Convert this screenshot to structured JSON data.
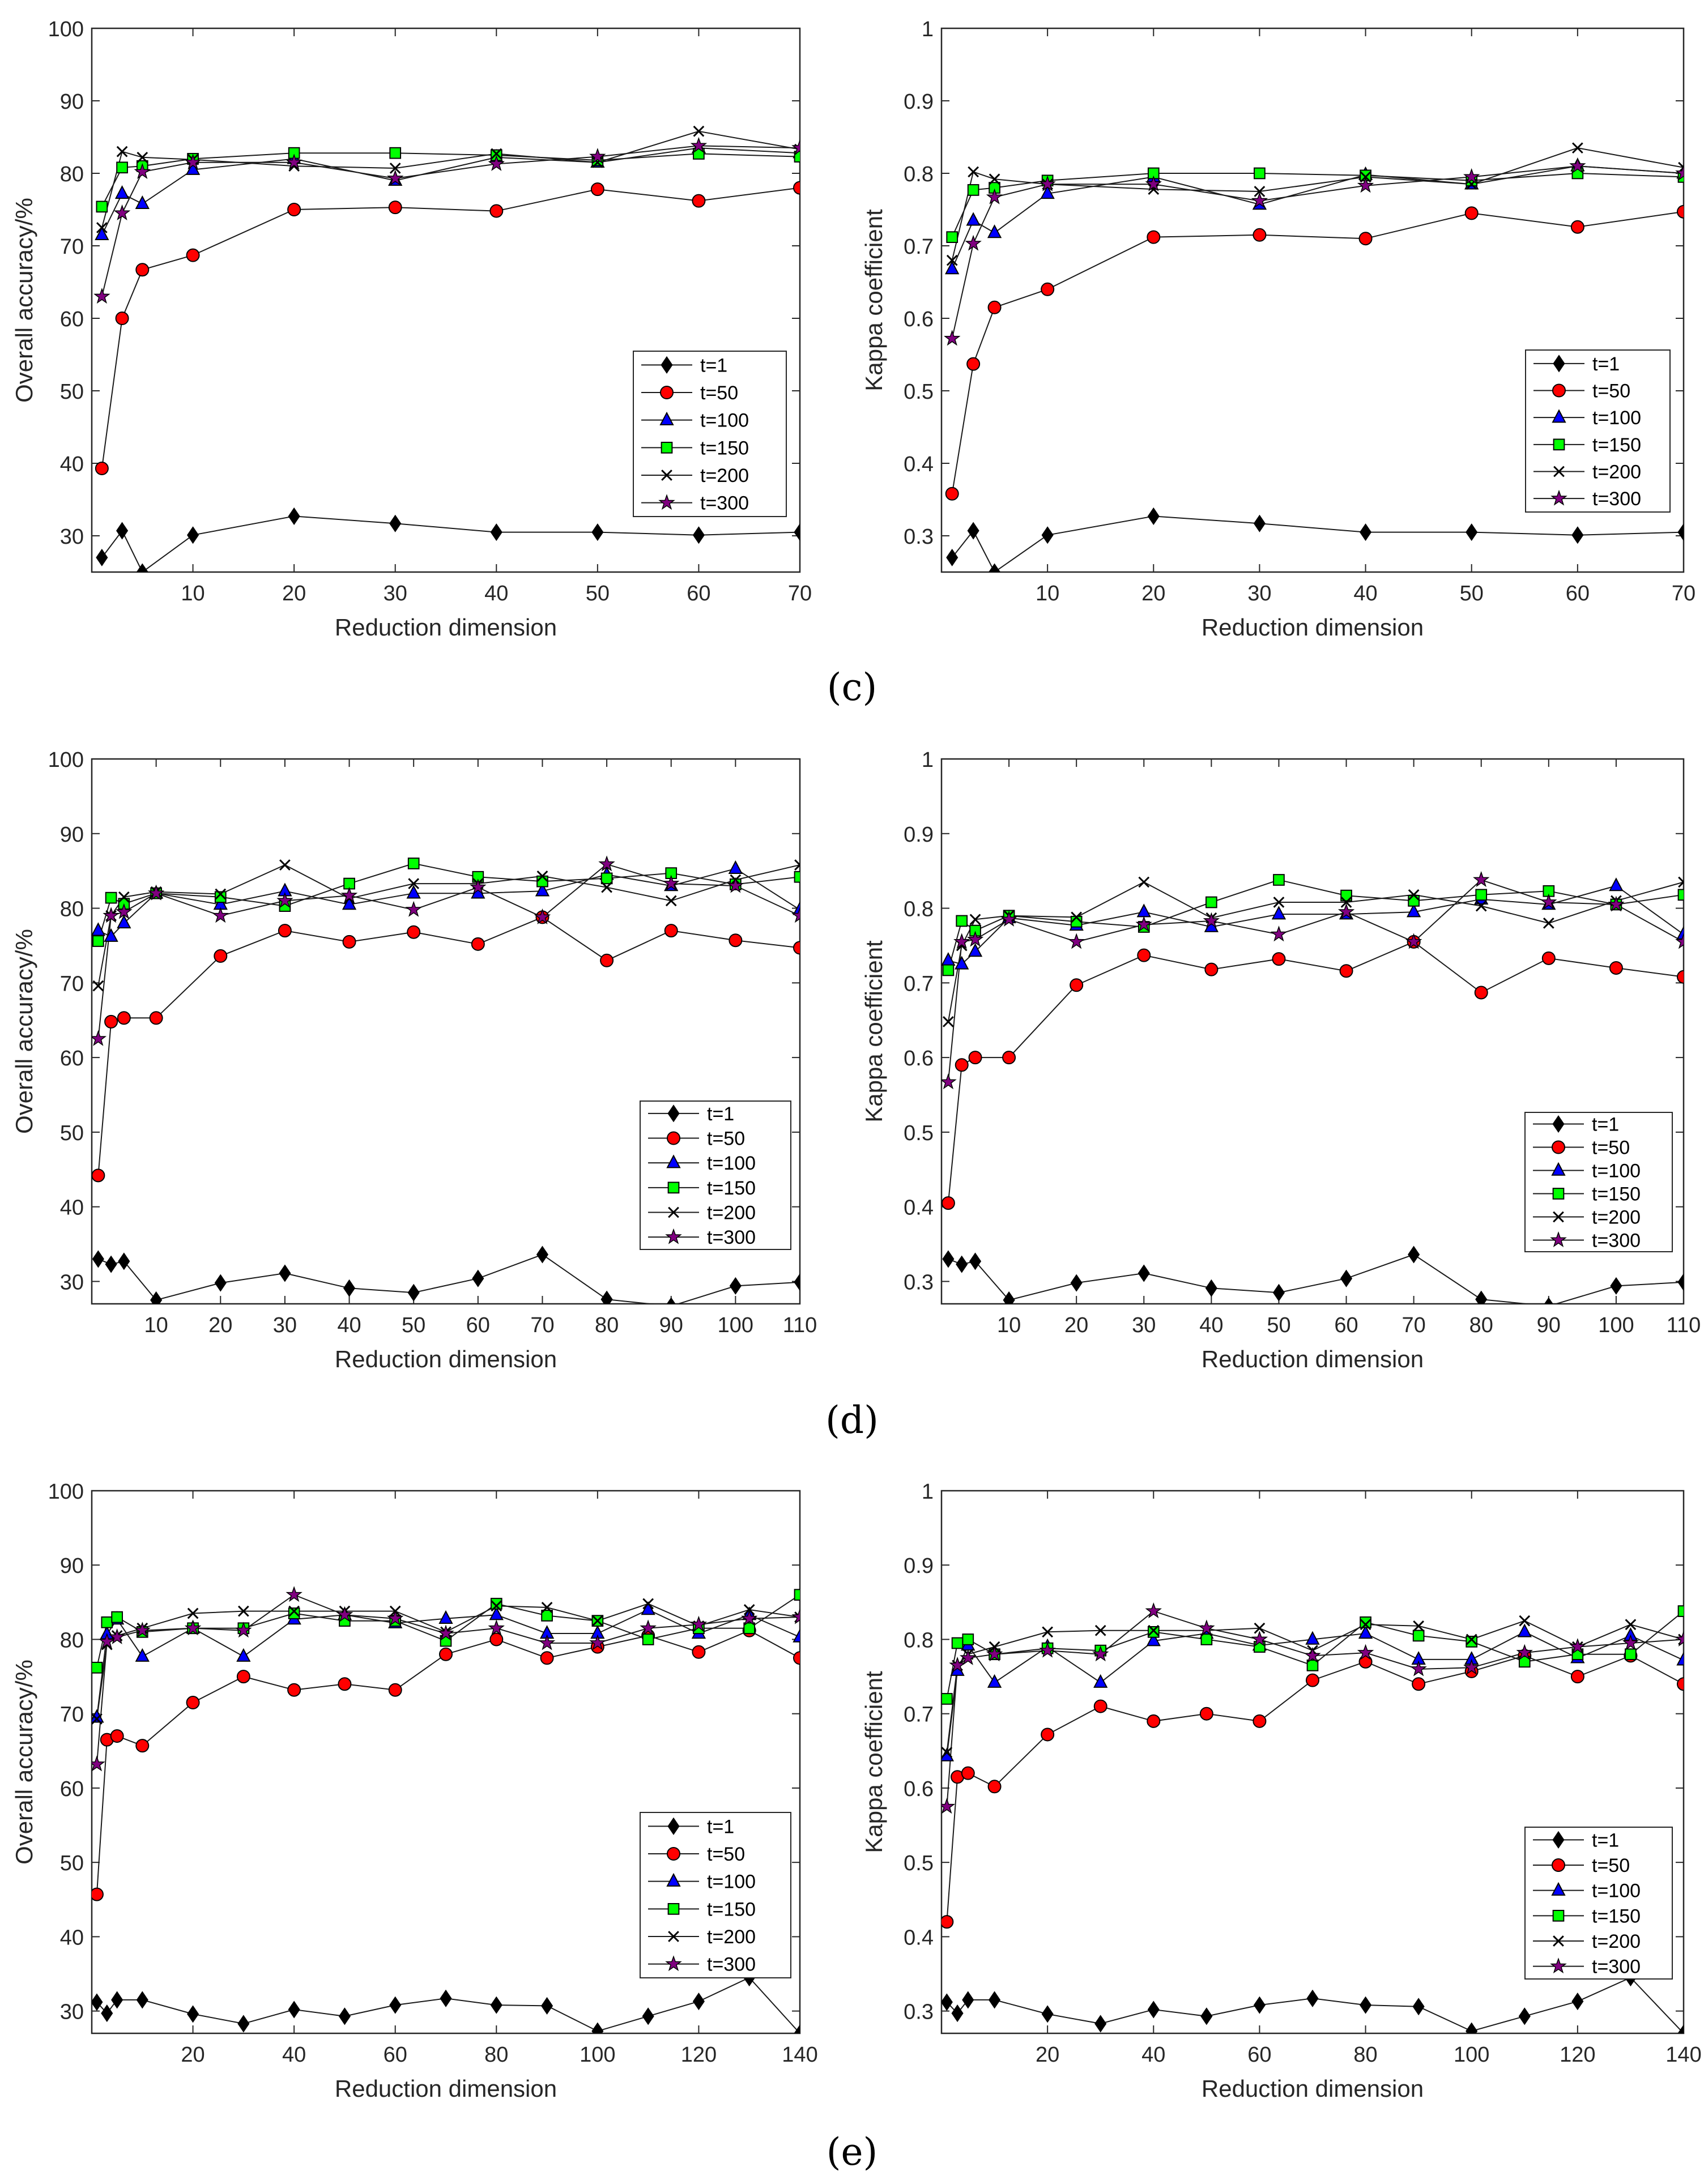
{
  "figure": {
    "panel_labels": [
      "(c)",
      "(d)",
      "(e)"
    ]
  },
  "series_styles": [
    {
      "name": "t=1",
      "marker": "diamond",
      "fill": "#000000",
      "line": "#000000"
    },
    {
      "name": "t=50",
      "marker": "circle",
      "fill": "#ff0000",
      "line": "#000000"
    },
    {
      "name": "t=100",
      "marker": "triangle",
      "fill": "#0000ff",
      "line": "#000000"
    },
    {
      "name": "t=150",
      "marker": "square",
      "fill": "#00ff00",
      "line": "#000000"
    },
    {
      "name": "t=200",
      "marker": "x",
      "fill": "#000000",
      "line": "#000000"
    },
    {
      "name": "t=300",
      "marker": "star",
      "fill": "#800080",
      "line": "#000000"
    }
  ],
  "chart_data": [
    {
      "panel": "(c)",
      "type": "line",
      "xlabel": "Reduction dimension",
      "ylabel": "Overall accuracy/%",
      "xlim": [
        0,
        70
      ],
      "ylim": [
        25,
        100
      ],
      "xticks": [
        10,
        20,
        30,
        40,
        50,
        60,
        70
      ],
      "yticks": [
        30,
        40,
        50,
        60,
        70,
        80,
        90,
        100
      ],
      "legend": "bottom-right",
      "x": [
        1,
        3,
        5,
        10,
        20,
        30,
        40,
        50,
        60,
        70
      ],
      "series": [
        {
          "name": "t=1",
          "values": [
            27,
            30.7,
            25,
            30.1,
            32.7,
            31.7,
            30.5,
            30.5,
            30.1,
            30.5
          ]
        },
        {
          "name": "t=50",
          "values": [
            39.3,
            60,
            66.7,
            68.7,
            75,
            75.3,
            74.8,
            77.8,
            76.2,
            78
          ]
        },
        {
          "name": "t=100",
          "values": [
            71.5,
            77.2,
            75.8,
            80.5,
            82,
            79,
            82.2,
            81.5,
            83.5,
            82.8
          ]
        },
        {
          "name": "t=150",
          "values": [
            75.4,
            80.8,
            81,
            82,
            82.8,
            82.8,
            82.5,
            81.8,
            82.7,
            82.3
          ]
        },
        {
          "name": "t=200",
          "values": [
            72.5,
            83,
            82.2,
            81.9,
            81,
            80.7,
            82.7,
            81.5,
            85.8,
            83.3
          ]
        },
        {
          "name": "t=300",
          "values": [
            63,
            74.5,
            80.2,
            81.5,
            81.5,
            79.3,
            81.3,
            82.3,
            83.8,
            83.5
          ]
        }
      ]
    },
    {
      "panel": "(c)",
      "type": "line",
      "xlabel": "Reduction dimension",
      "ylabel": "Kappa coefficient",
      "xlim": [
        0,
        70
      ],
      "ylim": [
        0.25,
        1
      ],
      "xticks": [
        10,
        20,
        30,
        40,
        50,
        60,
        70
      ],
      "yticks": [
        0.3,
        0.4,
        0.5,
        0.6,
        0.7,
        0.8,
        0.9,
        1
      ],
      "legend": "bottom-right",
      "x": [
        1,
        3,
        5,
        10,
        20,
        30,
        40,
        50,
        60,
        70
      ],
      "series": [
        {
          "name": "t=1",
          "values": [
            0.27,
            0.307,
            0.25,
            0.301,
            0.327,
            0.317,
            0.305,
            0.305,
            0.301,
            0.305
          ]
        },
        {
          "name": "t=50",
          "values": [
            0.358,
            0.537,
            0.615,
            0.64,
            0.712,
            0.715,
            0.71,
            0.745,
            0.726,
            0.747
          ]
        },
        {
          "name": "t=100",
          "values": [
            0.668,
            0.735,
            0.718,
            0.772,
            0.795,
            0.757,
            0.798,
            0.785,
            0.81,
            0.8
          ]
        },
        {
          "name": "t=150",
          "values": [
            0.712,
            0.777,
            0.78,
            0.79,
            0.8,
            0.8,
            0.797,
            0.79,
            0.8,
            0.795
          ]
        },
        {
          "name": "t=200",
          "values": [
            0.68,
            0.802,
            0.792,
            0.785,
            0.778,
            0.775,
            0.795,
            0.785,
            0.835,
            0.808
          ]
        },
        {
          "name": "t=300",
          "values": [
            0.572,
            0.703,
            0.767,
            0.785,
            0.785,
            0.762,
            0.783,
            0.795,
            0.81,
            0.8
          ]
        }
      ]
    },
    {
      "panel": "(d)",
      "type": "line",
      "xlabel": "Reduction dimension",
      "ylabel": "Overall accuracy/%",
      "xlim": [
        0,
        110
      ],
      "ylim": [
        27,
        100
      ],
      "xticks": [
        10,
        20,
        30,
        40,
        50,
        60,
        70,
        80,
        90,
        100,
        110
      ],
      "yticks": [
        30,
        40,
        50,
        60,
        70,
        80,
        90,
        100
      ],
      "legend": "bottom-right",
      "x": [
        1,
        3,
        5,
        10,
        20,
        30,
        40,
        50,
        60,
        70,
        80,
        90,
        100,
        110
      ],
      "series": [
        {
          "name": "t=1",
          "values": [
            33,
            32.3,
            32.7,
            27.5,
            29.8,
            31.1,
            29.1,
            28.5,
            30.4,
            33.6,
            27.6,
            26.7,
            29.4,
            29.9
          ]
        },
        {
          "name": "t=50",
          "values": [
            44.2,
            64.8,
            65.3,
            65.3,
            73.6,
            77,
            75.5,
            76.8,
            75.2,
            78.8,
            73,
            77,
            75.7,
            74.7
          ]
        },
        {
          "name": "t=100",
          "values": [
            77,
            76.2,
            78,
            82,
            80.5,
            82.3,
            80.5,
            82,
            82,
            82.3,
            84.5,
            83,
            85.3,
            79.8
          ]
        },
        {
          "name": "t=150",
          "values": [
            75.6,
            81.4,
            80.6,
            82,
            81.5,
            80.3,
            83.3,
            86,
            84.2,
            83.6,
            84,
            84.7,
            83.2,
            84.2
          ]
        },
        {
          "name": "t=200",
          "values": [
            69.6,
            79,
            81.5,
            82.2,
            81.9,
            85.8,
            81.3,
            83.3,
            83.3,
            84.3,
            82.8,
            81,
            83.8,
            85.8
          ]
        },
        {
          "name": "t=300",
          "values": [
            62.5,
            79,
            79.5,
            82,
            79,
            81,
            81.7,
            79.8,
            82.8,
            78.8,
            85.9,
            83.3,
            83,
            79
          ]
        }
      ]
    },
    {
      "panel": "(d)",
      "type": "line",
      "xlabel": "Reduction dimension",
      "ylabel": "Kappa coefficient",
      "xlim": [
        0,
        110
      ],
      "ylim": [
        0.27,
        1
      ],
      "xticks": [
        10,
        20,
        30,
        40,
        50,
        60,
        70,
        80,
        90,
        100,
        110
      ],
      "yticks": [
        0.3,
        0.4,
        0.5,
        0.6,
        0.7,
        0.8,
        0.9,
        1
      ],
      "legend": "bottom-right",
      "x": [
        1,
        3,
        5,
        10,
        20,
        30,
        40,
        50,
        60,
        70,
        80,
        90,
        100,
        110
      ],
      "series": [
        {
          "name": "t=1",
          "values": [
            0.33,
            0.323,
            0.327,
            0.275,
            0.298,
            0.311,
            0.291,
            0.285,
            0.304,
            0.336,
            0.276,
            0.267,
            0.294,
            0.299
          ]
        },
        {
          "name": "t=50",
          "values": [
            0.405,
            0.59,
            0.6,
            0.6,
            0.697,
            0.737,
            0.718,
            0.732,
            0.716,
            0.755,
            0.687,
            0.733,
            0.72,
            0.708
          ]
        },
        {
          "name": "t=100",
          "values": [
            0.73,
            0.725,
            0.742,
            0.787,
            0.777,
            0.795,
            0.775,
            0.792,
            0.792,
            0.795,
            0.812,
            0.805,
            0.83,
            0.765
          ]
        },
        {
          "name": "t=150",
          "values": [
            0.717,
            0.783,
            0.77,
            0.79,
            0.782,
            0.775,
            0.808,
            0.838,
            0.817,
            0.81,
            0.818,
            0.823,
            0.805,
            0.818
          ]
        },
        {
          "name": "t=200",
          "values": [
            0.648,
            0.75,
            0.785,
            0.79,
            0.788,
            0.835,
            0.787,
            0.808,
            0.808,
            0.818,
            0.803,
            0.78,
            0.81,
            0.835
          ]
        },
        {
          "name": "t=300",
          "values": [
            0.567,
            0.755,
            0.758,
            0.785,
            0.755,
            0.778,
            0.783,
            0.765,
            0.795,
            0.755,
            0.838,
            0.808,
            0.805,
            0.755
          ]
        }
      ]
    },
    {
      "panel": "(e)",
      "type": "line",
      "xlabel": "Reduction dimension",
      "ylabel": "Overall accuracy/%",
      "xlim": [
        0,
        140
      ],
      "ylim": [
        27,
        100
      ],
      "xticks": [
        20,
        40,
        60,
        80,
        100,
        120,
        140
      ],
      "yticks": [
        30,
        40,
        50,
        60,
        70,
        80,
        90,
        100
      ],
      "legend": "bottom-right",
      "x": [
        1,
        3,
        5,
        10,
        20,
        30,
        40,
        50,
        60,
        70,
        80,
        90,
        100,
        110,
        120,
        130,
        140
      ],
      "series": [
        {
          "name": "t=1",
          "values": [
            31.2,
            29.7,
            31.5,
            31.5,
            29.6,
            28.3,
            30.2,
            29.3,
            30.8,
            31.7,
            30.8,
            30.7,
            27.3,
            29.3,
            31.3,
            34.5,
            27
          ]
        },
        {
          "name": "t=50",
          "values": [
            45.7,
            66.5,
            67,
            65.7,
            71.5,
            75,
            73.2,
            74,
            73.2,
            78,
            80,
            77.5,
            79,
            80.5,
            78.3,
            81.2,
            77.5
          ]
        },
        {
          "name": "t=100",
          "values": [
            69.5,
            80.7,
            82.7,
            77.7,
            81.5,
            77.7,
            82.7,
            83.3,
            82.2,
            82.8,
            83.3,
            80.8,
            80.8,
            84,
            80.8,
            83.3,
            80.3
          ]
        },
        {
          "name": "t=150",
          "values": [
            76.2,
            82.3,
            83,
            81,
            81.5,
            81.5,
            83.5,
            82.5,
            82.5,
            79.8,
            84.8,
            83.2,
            82.5,
            80,
            81.5,
            81.5,
            86
          ]
        },
        {
          "name": "t=200",
          "values": [
            69.3,
            79.3,
            80.5,
            81.5,
            83.5,
            83.8,
            83.8,
            83.8,
            83.8,
            81,
            84.5,
            84.3,
            82.5,
            84.8,
            81.8,
            84,
            83
          ]
        },
        {
          "name": "t=300",
          "values": [
            63.2,
            79.7,
            80.3,
            81.2,
            81.5,
            81.2,
            86,
            83.3,
            82.8,
            80.8,
            81.5,
            79.5,
            79.5,
            81.5,
            82,
            82.8,
            83
          ]
        }
      ]
    },
    {
      "panel": "(e)",
      "type": "line",
      "xlabel": "Reduction dimension",
      "ylabel": "Kappa coefficient",
      "xlim": [
        0,
        140
      ],
      "ylim": [
        0.27,
        1
      ],
      "xticks": [
        20,
        40,
        60,
        80,
        100,
        120,
        140
      ],
      "yticks": [
        0.3,
        0.4,
        0.5,
        0.6,
        0.7,
        0.8,
        0.9,
        1
      ],
      "legend": "bottom-right",
      "x": [
        1,
        3,
        5,
        10,
        20,
        30,
        40,
        50,
        60,
        70,
        80,
        90,
        100,
        110,
        120,
        130,
        140
      ],
      "series": [
        {
          "name": "t=1",
          "values": [
            0.312,
            0.297,
            0.315,
            0.315,
            0.296,
            0.283,
            0.302,
            0.293,
            0.308,
            0.317,
            0.308,
            0.306,
            0.273,
            0.293,
            0.313,
            0.345,
            0.27
          ]
        },
        {
          "name": "t=50",
          "values": [
            0.42,
            0.615,
            0.62,
            0.602,
            0.672,
            0.71,
            0.69,
            0.7,
            0.69,
            0.745,
            0.77,
            0.74,
            0.757,
            0.778,
            0.75,
            0.778,
            0.74
          ]
        },
        {
          "name": "t=100",
          "values": [
            0.643,
            0.758,
            0.792,
            0.742,
            0.79,
            0.742,
            0.798,
            0.808,
            0.792,
            0.8,
            0.808,
            0.773,
            0.773,
            0.81,
            0.775,
            0.805,
            0.772
          ]
        },
        {
          "name": "t=150",
          "values": [
            0.72,
            0.795,
            0.8,
            0.78,
            0.788,
            0.785,
            0.81,
            0.8,
            0.79,
            0.765,
            0.823,
            0.805,
            0.797,
            0.77,
            0.78,
            0.78,
            0.838
          ]
        },
        {
          "name": "t=200",
          "values": [
            0.648,
            0.765,
            0.78,
            0.79,
            0.81,
            0.812,
            0.812,
            0.812,
            0.815,
            0.785,
            0.82,
            0.818,
            0.8,
            0.825,
            0.79,
            0.82,
            0.8
          ]
        },
        {
          "name": "t=300",
          "values": [
            0.575,
            0.765,
            0.775,
            0.78,
            0.785,
            0.78,
            0.838,
            0.815,
            0.8,
            0.778,
            0.782,
            0.76,
            0.762,
            0.782,
            0.79,
            0.795,
            0.8
          ]
        }
      ]
    }
  ]
}
